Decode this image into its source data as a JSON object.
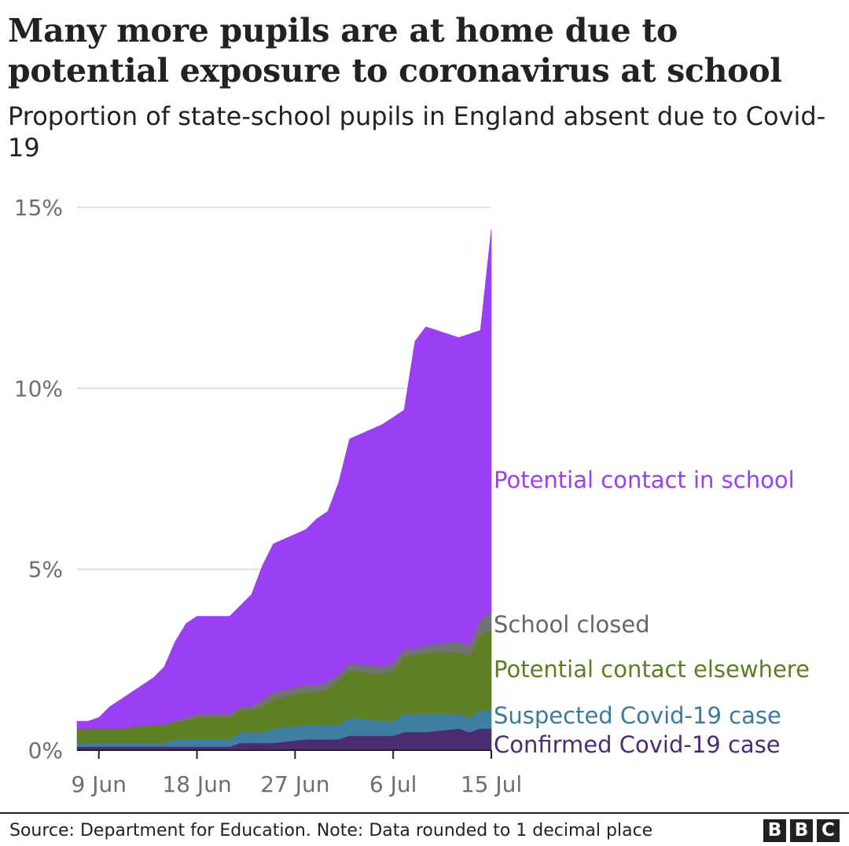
{
  "header": {
    "title": "Many more pupils are at home due to potential exposure to coronavirus at school",
    "subtitle": "Proportion of state-school pupils in England absent due to Covid-19"
  },
  "footer": {
    "source": "Source: Department for Education. Note: Data rounded to 1 decimal place",
    "logo_letters": [
      "B",
      "B",
      "C"
    ]
  },
  "chart_data": {
    "type": "area",
    "stacked": true,
    "xlabel": "",
    "ylabel": "",
    "x": [
      "2021-06-07",
      "2021-06-08",
      "2021-06-09",
      "2021-06-10",
      "2021-06-11",
      "2021-06-14",
      "2021-06-15",
      "2021-06-16",
      "2021-06-17",
      "2021-06-18",
      "2021-06-21",
      "2021-06-22",
      "2021-06-23",
      "2021-06-24",
      "2021-06-25",
      "2021-06-28",
      "2021-06-29",
      "2021-06-30",
      "2021-07-01",
      "2021-07-02",
      "2021-07-05",
      "2021-07-06",
      "2021-07-07",
      "2021-07-08",
      "2021-07-09",
      "2021-07-12",
      "2021-07-13",
      "2021-07-14",
      "2021-07-15"
    ],
    "x_ticks": [
      {
        "date": "2021-06-09",
        "label": "9 Jun"
      },
      {
        "date": "2021-06-18",
        "label": "18 Jun"
      },
      {
        "date": "2021-06-27",
        "label": "27 Jun"
      },
      {
        "date": "2021-07-06",
        "label": "6 Jul"
      },
      {
        "date": "2021-07-15",
        "label": "15 Jul"
      }
    ],
    "y_ticks": [
      {
        "value": 0,
        "label": "0%"
      },
      {
        "value": 5,
        "label": "5%"
      },
      {
        "value": 10,
        "label": "10%"
      },
      {
        "value": 15,
        "label": "15%"
      }
    ],
    "ylim": [
      0,
      15
    ],
    "grid": true,
    "series": [
      {
        "name": "Confirmed Covid-19 case",
        "color": "#4a2c72",
        "label_color": "#4a2c72",
        "values": [
          0.1,
          0.1,
          0.1,
          0.1,
          0.1,
          0.1,
          0.1,
          0.1,
          0.1,
          0.1,
          0.1,
          0.2,
          0.2,
          0.2,
          0.2,
          0.3,
          0.3,
          0.3,
          0.3,
          0.4,
          0.4,
          0.4,
          0.5,
          0.5,
          0.5,
          0.6,
          0.5,
          0.6,
          0.6
        ]
      },
      {
        "name": "Suspected Covid-19 case",
        "color": "#3f7fa0",
        "label_color": "#3b7a9c",
        "values": [
          0.1,
          0.1,
          0.1,
          0.1,
          0.1,
          0.1,
          0.1,
          0.2,
          0.2,
          0.2,
          0.2,
          0.3,
          0.3,
          0.3,
          0.4,
          0.4,
          0.4,
          0.4,
          0.4,
          0.5,
          0.4,
          0.4,
          0.5,
          0.5,
          0.5,
          0.4,
          0.4,
          0.5,
          0.5
        ]
      },
      {
        "name": "Potential contact elsewhere",
        "color": "#5e7f22",
        "label_color": "#5c7d23",
        "values": [
          0.4,
          0.4,
          0.4,
          0.4,
          0.4,
          0.5,
          0.5,
          0.5,
          0.5,
          0.6,
          0.6,
          0.6,
          0.6,
          0.7,
          0.8,
          0.9,
          0.9,
          1.0,
          1.2,
          1.3,
          1.3,
          1.4,
          1.6,
          1.6,
          1.7,
          1.7,
          1.7,
          2.1,
          2.2
        ]
      },
      {
        "name": "School closed",
        "color": "#727272",
        "label_color": "#666666",
        "values": [
          0.0,
          0.0,
          0.0,
          0.0,
          0.0,
          0.0,
          0.0,
          0.0,
          0.1,
          0.1,
          0.1,
          0.1,
          0.1,
          0.2,
          0.2,
          0.2,
          0.2,
          0.2,
          0.2,
          0.2,
          0.2,
          0.2,
          0.2,
          0.2,
          0.2,
          0.3,
          0.3,
          0.4,
          0.5
        ]
      },
      {
        "name": "Potential contact in school",
        "color": "#9b3ff2",
        "label_color": "#9b3ff2",
        "values": [
          0.2,
          0.2,
          0.3,
          0.6,
          0.8,
          1.3,
          1.6,
          2.2,
          2.6,
          2.7,
          2.7,
          2.8,
          3.1,
          3.7,
          4.1,
          4.3,
          4.6,
          4.7,
          5.3,
          6.2,
          6.7,
          6.8,
          6.6,
          8.5,
          8.8,
          8.4,
          8.6,
          8.0,
          10.6
        ]
      }
    ]
  }
}
